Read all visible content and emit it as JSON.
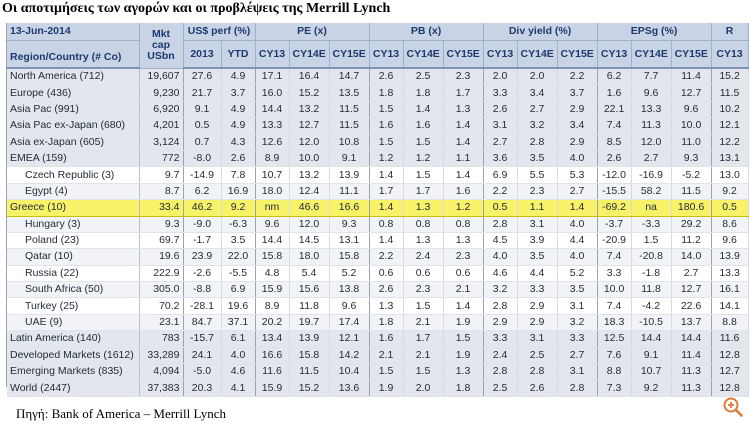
{
  "title": "Οι αποτιμήσεις των αγορών και οι προβλέψεις της Merrill Lynch",
  "source": "Πηγή: Bank of America – Merrill Lynch",
  "table": {
    "date": "13-Jun-2014",
    "country_header": "Region/Country  (# Co)",
    "mktcap_header": [
      "Mkt",
      "cap",
      "USbn"
    ],
    "groups": [
      "US$ perf (%)",
      "PE (x)",
      "PB (x)",
      "Div yield (%)",
      "EPSg (%)",
      "R"
    ],
    "subheaders": [
      "2013",
      "YTD",
      "CY13",
      "CY14E",
      "CY15E",
      "CY13",
      "CY14E",
      "CY15E",
      "CY13",
      "CY14E",
      "CY15E",
      "CY13",
      "CY14E",
      "CY15E",
      "CY13"
    ],
    "rows": [
      {
        "type": "region",
        "cells": [
          "North America (712)",
          "19,607",
          "27.6",
          "4.9",
          "17.1",
          "16.4",
          "14.7",
          "2.6",
          "2.5",
          "2.3",
          "2.0",
          "2.0",
          "2.2",
          "6.2",
          "7.7",
          "11.4",
          "15.2"
        ]
      },
      {
        "type": "region",
        "cells": [
          "Europe (436)",
          "9,230",
          "21.7",
          "3.7",
          "16.0",
          "15.2",
          "13.5",
          "1.8",
          "1.8",
          "1.7",
          "3.3",
          "3.4",
          "3.7",
          "1.6",
          "9.6",
          "12.7",
          "11.5"
        ]
      },
      {
        "type": "region",
        "cells": [
          "Asia Pac (991)",
          "6,920",
          "9.1",
          "4.9",
          "14.4",
          "13.2",
          "11.5",
          "1.5",
          "1.4",
          "1.3",
          "2.6",
          "2.7",
          "2.9",
          "22.1",
          "13.3",
          "9.6",
          "10.2"
        ]
      },
      {
        "type": "region",
        "cells": [
          "Asia Pac ex-Japan (680)",
          "4,201",
          "0.5",
          "4.9",
          "13.3",
          "12.7",
          "11.5",
          "1.6",
          "1.6",
          "1.4",
          "3.1",
          "3.2",
          "3.4",
          "7.4",
          "11.3",
          "10.0",
          "12.1"
        ]
      },
      {
        "type": "region",
        "cells": [
          "Asia ex-Japan (605)",
          "3,124",
          "0.7",
          "4.3",
          "12.6",
          "12.0",
          "10.8",
          "1.5",
          "1.5",
          "1.4",
          "2.7",
          "2.8",
          "2.9",
          "8.5",
          "12.0",
          "11.0",
          "12.2"
        ]
      },
      {
        "type": "region",
        "cells": [
          "EMEA (159)",
          "772",
          "-8.0",
          "2.6",
          "8.9",
          "10.0",
          "9.1",
          "1.2",
          "1.2",
          "1.1",
          "3.6",
          "3.5",
          "4.0",
          "2.6",
          "2.7",
          "9.3",
          "13.1"
        ]
      },
      {
        "type": "sub",
        "cells": [
          "Czech Republic (3)",
          "9.7",
          "-14.9",
          "7.8",
          "10.7",
          "13.2",
          "13.9",
          "1.4",
          "1.5",
          "1.4",
          "6.9",
          "5.5",
          "5.3",
          "-12.0",
          "-16.9",
          "-5.2",
          "13.0"
        ]
      },
      {
        "type": "sub",
        "cells": [
          "Egypt (4)",
          "8.7",
          "6.2",
          "16.9",
          "18.0",
          "12.4",
          "11.1",
          "1.7",
          "1.7",
          "1.6",
          "2.2",
          "2.3",
          "2.7",
          "-15.5",
          "58.2",
          "11.5",
          "9.2"
        ]
      },
      {
        "type": "highlight",
        "cells": [
          "Greece (10)",
          "33.4",
          "46.2",
          "9.2",
          "nm",
          "46.6",
          "16.6",
          "1.4",
          "1.3",
          "1.2",
          "0.5",
          "1.1",
          "1.4",
          "-69.2",
          "na",
          "180.6",
          "0.5"
        ]
      },
      {
        "type": "sub",
        "cells": [
          "Hungary (3)",
          "9.3",
          "-9.0",
          "-6.3",
          "9.6",
          "12.0",
          "9.3",
          "0.8",
          "0.8",
          "0.8",
          "2.8",
          "3.1",
          "4.0",
          "-3.7",
          "-3.3",
          "29.2",
          "8.6"
        ]
      },
      {
        "type": "sub",
        "cells": [
          "Poland (23)",
          "69.7",
          "-1.7",
          "3.5",
          "14.4",
          "14.5",
          "13.1",
          "1.4",
          "1.3",
          "1.3",
          "4.5",
          "3.9",
          "4.4",
          "-20.9",
          "1.5",
          "11.2",
          "9.6"
        ]
      },
      {
        "type": "sub",
        "cells": [
          "Qatar (10)",
          "19.6",
          "23.9",
          "22.0",
          "15.8",
          "18.0",
          "15.8",
          "2.2",
          "2.4",
          "2.3",
          "4.0",
          "3.5",
          "4.0",
          "7.4",
          "-20.8",
          "14.0",
          "13.9"
        ]
      },
      {
        "type": "sub",
        "cells": [
          "Russia (22)",
          "222.9",
          "-2.6",
          "-5.5",
          "4.8",
          "5.4",
          "5.2",
          "0.6",
          "0.6",
          "0.6",
          "4.6",
          "4.4",
          "5.2",
          "3.3",
          "-1.8",
          "2.7",
          "13.3"
        ]
      },
      {
        "type": "sub",
        "cells": [
          "South Africa (50)",
          "305.0",
          "-8.8",
          "6.9",
          "15.9",
          "15.6",
          "13.8",
          "2.6",
          "2.3",
          "2.1",
          "3.2",
          "3.3",
          "3.5",
          "10.0",
          "11.8",
          "12.7",
          "16.1"
        ]
      },
      {
        "type": "sub",
        "cells": [
          "Turkey (25)",
          "70.2",
          "-28.1",
          "19.6",
          "8.9",
          "11.8",
          "9.6",
          "1.3",
          "1.5",
          "1.4",
          "2.8",
          "2.9",
          "3.1",
          "7.4",
          "-4.2",
          "22.6",
          "14.1"
        ]
      },
      {
        "type": "sub",
        "cells": [
          "UAE (9)",
          "23.1",
          "84.7",
          "37.1",
          "20.2",
          "19.7",
          "17.4",
          "1.8",
          "2.1",
          "1.9",
          "2.9",
          "2.9",
          "3.2",
          "18.3",
          "-10.5",
          "13.7",
          "8.8"
        ]
      },
      {
        "type": "region",
        "cells": [
          "Latin America (140)",
          "783",
          "-15.7",
          "6.1",
          "13.4",
          "13.9",
          "12.1",
          "1.6",
          "1.7",
          "1.5",
          "3.3",
          "3.1",
          "3.3",
          "12.5",
          "14.4",
          "14.4",
          "11.6"
        ]
      },
      {
        "type": "region",
        "cells": [
          "Developed Markets (1612)",
          "33,289",
          "24.1",
          "4.0",
          "16.6",
          "15.8",
          "14.2",
          "2.1",
          "2.1",
          "1.9",
          "2.4",
          "2.5",
          "2.7",
          "7.6",
          "9.1",
          "11.4",
          "12.8"
        ]
      },
      {
        "type": "region",
        "cells": [
          "Emerging Markets (835)",
          "4,094",
          "-5.0",
          "4.6",
          "11.6",
          "11.5",
          "10.4",
          "1.5",
          "1.5",
          "1.3",
          "2.8",
          "2.8",
          "3.1",
          "8.8",
          "10.7",
          "11.3",
          "12.7"
        ]
      },
      {
        "type": "region",
        "cells": [
          "World (2447)",
          "37,383",
          "20.3",
          "4.1",
          "15.9",
          "15.2",
          "13.6",
          "1.9",
          "2.0",
          "1.8",
          "2.5",
          "2.6",
          "2.8",
          "7.3",
          "9.2",
          "11.3",
          "12.8"
        ]
      }
    ]
  },
  "icons": {
    "zoom": "zoom-in-icon"
  },
  "colors": {
    "header_bg": "#c8d3e6",
    "header_text": "#1d3a6e",
    "highlight": "#f7f267",
    "zoom_icon": "#e07b3c"
  }
}
